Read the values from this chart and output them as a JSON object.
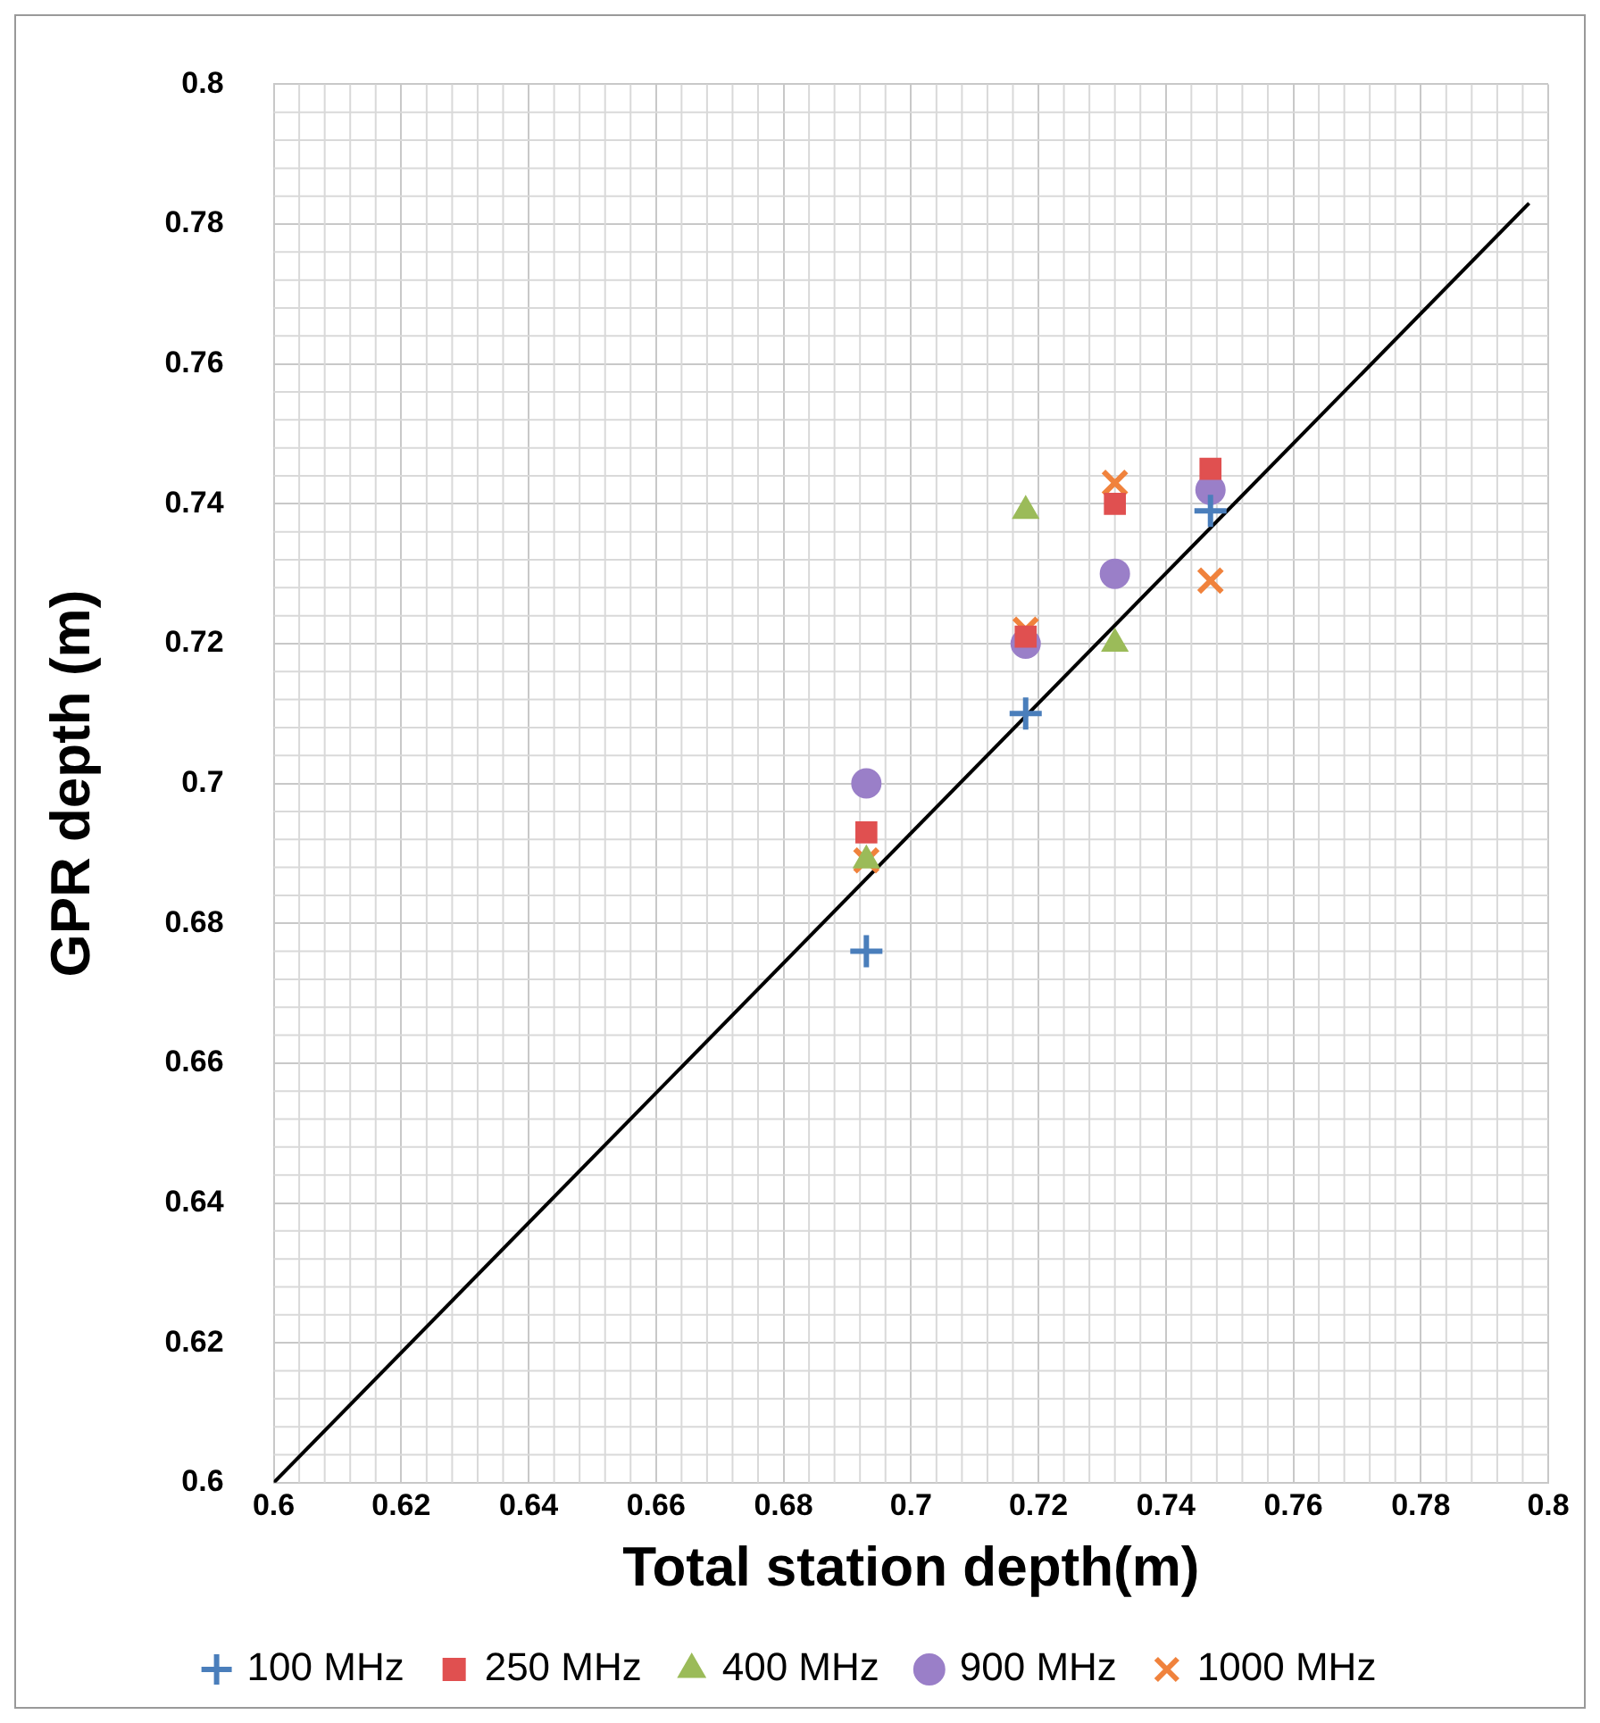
{
  "chart_data": {
    "type": "scatter",
    "xlabel": "Total station depth(m)",
    "ylabel": "GPR depth (m)",
    "xlim": [
      0.6,
      0.8
    ],
    "xticks": [
      0.6,
      0.62,
      0.64,
      0.66,
      0.68,
      0.7,
      0.72,
      0.74,
      0.76,
      0.78,
      0.8
    ],
    "ylim": [
      0.6,
      0.8
    ],
    "yticks": [
      0.6,
      0.62,
      0.64,
      0.66,
      0.68,
      0.7,
      0.72,
      0.74,
      0.76,
      0.78,
      0.8
    ],
    "grid": true,
    "legend": "bottom",
    "series": [
      {
        "name": "100 MHz",
        "color": "#4a7ebb",
        "marker": "cross",
        "x": [
          0.693,
          0.718,
          0.747
        ],
        "values": [
          0.676,
          0.71,
          0.739
        ]
      },
      {
        "name": "250 MHz",
        "color": "#e05050",
        "marker": "square",
        "x": [
          0.693,
          0.718,
          0.732,
          0.747
        ],
        "values": [
          0.693,
          0.721,
          0.74,
          0.745
        ]
      },
      {
        "name": "400 MHz",
        "color": "#9bbb59",
        "marker": "triangle",
        "x": [
          0.693,
          0.718,
          0.732
        ],
        "values": [
          0.689,
          0.739,
          0.72
        ]
      },
      {
        "name": "900 MHz",
        "color": "#9a7fc8",
        "marker": "circle",
        "x": [
          0.693,
          0.718,
          0.732,
          0.747
        ],
        "values": [
          0.7,
          0.72,
          0.73,
          0.742
        ]
      },
      {
        "name": "1000 MHz",
        "color": "#f0823c",
        "marker": "x",
        "x": [
          0.693,
          0.718,
          0.732,
          0.747
        ],
        "values": [
          0.689,
          0.722,
          0.743,
          0.729
        ]
      },
      {
        "type": "line",
        "color": "#000000",
        "marker": "none",
        "x": [
          0.6,
          0.797
        ],
        "values": [
          0.6,
          0.783
        ]
      }
    ]
  }
}
